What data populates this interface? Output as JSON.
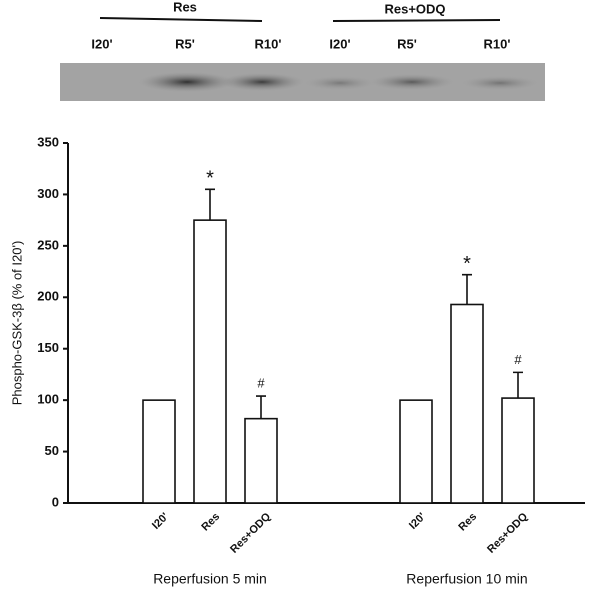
{
  "blot": {
    "groups": [
      {
        "label": "Res",
        "lanes": [
          "I20'",
          "R5'",
          "R10'"
        ]
      },
      {
        "label": "Res+ODQ",
        "lanes": [
          "I20'",
          "R5'",
          "R10'"
        ]
      }
    ]
  },
  "chart_data": {
    "type": "bar",
    "ylabel": "Phospho-GSK-3β (% of I20')",
    "groups": [
      {
        "label": "Reperfusion 5 min",
        "categories": [
          "I20'",
          "Res",
          "Res+ODQ"
        ],
        "values": [
          100,
          275,
          82
        ],
        "errors": [
          null,
          30,
          22
        ],
        "annotations": [
          null,
          "*",
          "#"
        ]
      },
      {
        "label": "Reperfusion 10 min",
        "categories": [
          "I20'",
          "Res",
          "Res+ODQ"
        ],
        "values": [
          100,
          193,
          102
        ],
        "errors": [
          null,
          29,
          25
        ],
        "annotations": [
          null,
          "*",
          "#"
        ]
      }
    ],
    "color": "#ffffff",
    "ylim": [
      0,
      350
    ],
    "yticks": [
      0,
      50,
      100,
      150,
      200,
      250,
      300,
      350
    ]
  }
}
